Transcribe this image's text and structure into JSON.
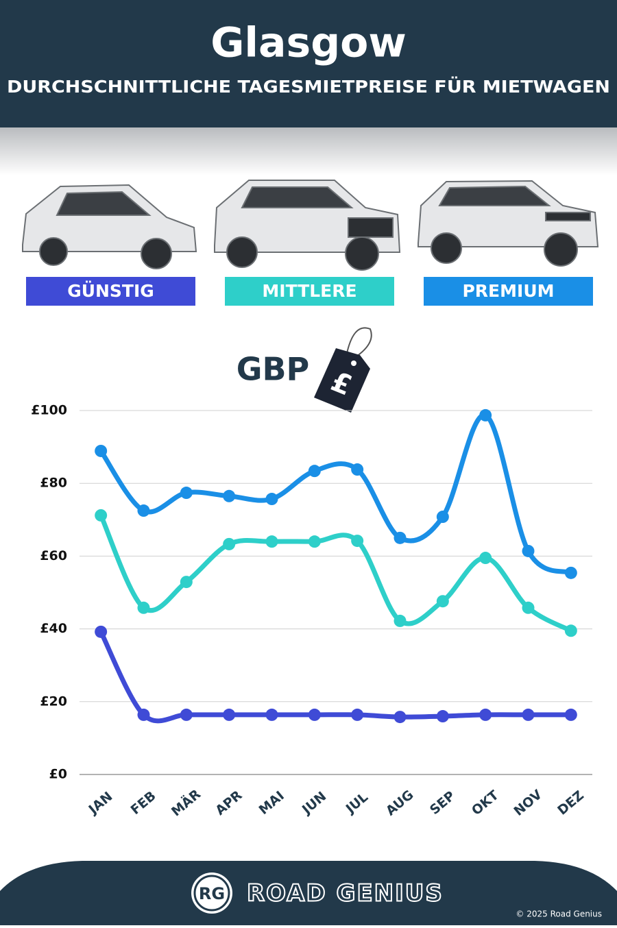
{
  "chart_data": {
    "type": "line",
    "title": "Glasgow",
    "subtitle": "DURCHSCHNITTLICHE TAGESMIETPREISE FÜR MIETWAGEN",
    "currency": "GBP",
    "currency_symbol": "£",
    "categories": [
      "JAN",
      "FEB",
      "MÄR",
      "APR",
      "MAI",
      "JUN",
      "JUL",
      "AUG",
      "SEP",
      "OKT",
      "NOV",
      "DEZ"
    ],
    "series": [
      {
        "name": "GÜNSTIG",
        "color": "#3f4bd6",
        "values": [
          39.2,
          16.4,
          16.4,
          16.4,
          16.4,
          16.4,
          16.4,
          15.8,
          16.0,
          16.4,
          16.4,
          16.4
        ]
      },
      {
        "name": "MITTLERE",
        "color": "#2ecfc9",
        "values": [
          71.2,
          45.8,
          52.9,
          63.3,
          64.0,
          64.0,
          64.2,
          42.2,
          47.6,
          59.5,
          45.8,
          39.5
        ]
      },
      {
        "name": "PREMIUM",
        "color": "#1a8fe6",
        "values": [
          88.9,
          72.5,
          77.4,
          76.5,
          75.7,
          83.4,
          83.8,
          65.0,
          70.8,
          98.7,
          61.4,
          55.4
        ]
      }
    ],
    "ylim": [
      0,
      100
    ],
    "yticks": [
      {
        "value": 0,
        "label": "£0"
      },
      {
        "value": 20,
        "label": "£20"
      },
      {
        "value": 40,
        "label": "£40"
      },
      {
        "value": 60,
        "label": "£60"
      },
      {
        "value": 80,
        "label": "£80"
      },
      {
        "value": 100,
        "label": "£100"
      }
    ],
    "grid": true
  },
  "footer": {
    "logo": "RG",
    "brand": "ROAD GENIUS",
    "copyright": "© 2025 Road Genius"
  }
}
